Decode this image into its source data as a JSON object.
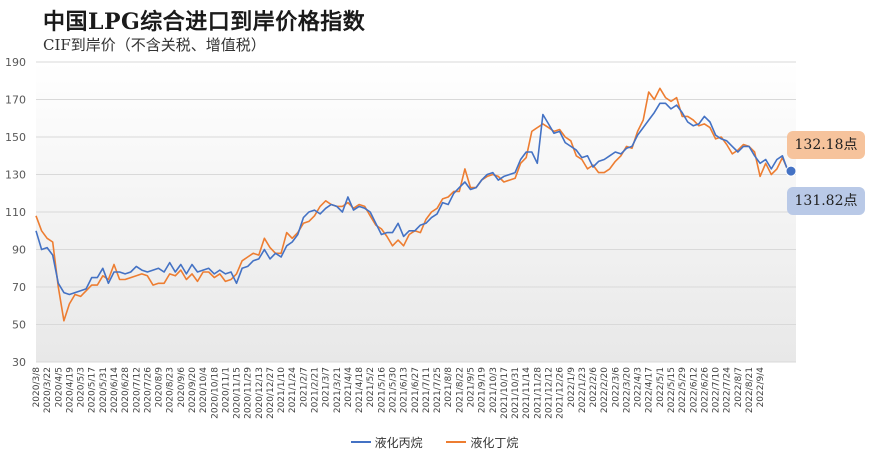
{
  "title": "中国LPG综合进口到岸价格指数",
  "subtitle": "CIF到岸价（不含关税、增值税）",
  "callouts": {
    "butane": "132.18点",
    "propane": "131.82点"
  },
  "legend": {
    "propane": "液化丙烷",
    "butane": "液化丁烷"
  },
  "colors": {
    "propane": "#4472c4",
    "butane": "#ed7d31",
    "grid": "#d9d9d9",
    "dot": "#4472c4"
  },
  "chart_data": {
    "type": "line",
    "title": "中国LPG综合进口到岸价格指数",
    "subtitle": "CIF到岸价（不含关税、增值税）",
    "ylim": [
      30,
      190
    ],
    "yticks": [
      30,
      50,
      70,
      90,
      110,
      130,
      150,
      170,
      190
    ],
    "x_tick_labels": [
      "2020/3/8",
      "2020/3/22",
      "2020/4/5",
      "2020/4/19",
      "2020/5/3",
      "2020/5/17",
      "2020/5/31",
      "2020/6/14",
      "2020/6/28",
      "2020/7/12",
      "2020/7/26",
      "2020/8/9",
      "2020/8/23",
      "2020/9/6",
      "2020/9/20",
      "2020/10/4",
      "2020/10/18",
      "2020/11/1",
      "2020/11/15",
      "2020/11/29",
      "2020/12/13",
      "2020/12/27",
      "2021/1/10",
      "2021/1/24",
      "2021/2/7",
      "2021/2/21",
      "2021/3/7",
      "2021/3/21",
      "2021/4/4",
      "2021/4/18",
      "2021/5/2",
      "2021/5/16",
      "2021/5/30",
      "2021/6/13",
      "2021/6/27",
      "2021/7/11",
      "2021/7/25",
      "2021/8/8",
      "2021/8/22",
      "2021/9/5",
      "2021/9/19",
      "2021/10/3",
      "2021/10/17",
      "2021/10/31",
      "2021/11/14",
      "2021/11/28",
      "2021/12/12",
      "2021/12/26",
      "2022/1/9",
      "2022/1/23",
      "2022/2/6",
      "2022/2/20",
      "2022/3/6",
      "2022/3/20",
      "2022/4/3",
      "2022/4/17",
      "2022/5/1",
      "2022/5/15",
      "2022/5/29",
      "2022/6/12",
      "2022/6/26",
      "2022/7/10",
      "2022/7/24",
      "2022/8/7",
      "2022/8/21",
      "2022/9/4"
    ],
    "series": [
      {
        "name": "液化丙烷",
        "values": [
          100,
          90,
          91,
          87,
          72,
          67,
          66,
          67,
          68,
          69,
          75,
          75,
          80,
          72,
          78,
          78,
          77,
          78,
          81,
          79,
          78,
          79,
          80,
          78,
          83,
          78,
          82,
          77,
          82,
          78,
          79,
          80,
          77,
          79,
          77,
          78,
          72,
          80,
          81,
          84,
          85,
          90,
          85,
          88,
          86,
          92,
          94,
          98,
          107,
          110,
          111,
          109,
          112,
          114,
          113,
          110,
          118,
          111,
          113,
          112,
          110,
          104,
          98,
          99,
          99,
          104,
          97,
          100,
          100,
          103,
          104,
          107,
          109,
          115,
          114,
          120,
          123,
          126,
          122,
          123,
          127,
          130,
          131,
          127,
          129,
          130,
          131,
          138,
          142,
          142,
          136,
          162,
          157,
          152,
          153,
          147,
          145,
          143,
          139,
          140,
          134,
          137,
          138,
          140,
          142,
          141,
          144,
          145,
          151,
          155,
          159,
          163,
          168,
          168,
          165,
          167,
          163,
          158,
          156,
          157,
          161,
          158,
          151,
          149,
          148,
          145,
          142,
          145,
          145,
          140,
          136,
          138,
          133,
          138,
          140,
          131.82
        ]
      },
      {
        "name": "液化丁烷",
        "values": [
          108,
          100,
          96,
          94,
          70,
          52,
          61,
          66,
          65,
          68,
          71,
          71,
          76,
          74,
          82,
          74,
          74,
          75,
          76,
          77,
          76,
          71,
          72,
          72,
          77,
          76,
          79,
          74,
          77,
          73,
          78,
          78,
          75,
          77,
          73,
          74,
          77,
          84,
          86,
          88,
          87,
          96,
          91,
          88,
          88,
          99,
          96,
          99,
          104,
          105,
          108,
          113,
          116,
          114,
          113,
          113,
          115,
          112,
          114,
          113,
          108,
          103,
          101,
          97,
          92,
          95,
          92,
          98,
          100,
          99,
          106,
          110,
          112,
          117,
          118,
          121,
          121,
          133,
          123,
          123,
          127,
          129,
          130,
          129,
          126,
          127,
          128,
          136,
          139,
          153,
          155,
          157,
          155,
          153,
          154,
          150,
          148,
          140,
          138,
          133,
          135,
          131,
          131,
          133,
          137,
          140,
          145,
          144,
          153,
          159,
          174,
          170,
          176,
          171,
          169,
          171,
          161,
          161,
          159,
          156,
          157,
          155,
          149,
          150,
          146,
          141,
          143,
          146,
          145,
          142,
          129,
          136,
          130,
          133,
          139,
          132.18
        ]
      }
    ],
    "legend_position": "bottom",
    "grid": "horizontal"
  }
}
